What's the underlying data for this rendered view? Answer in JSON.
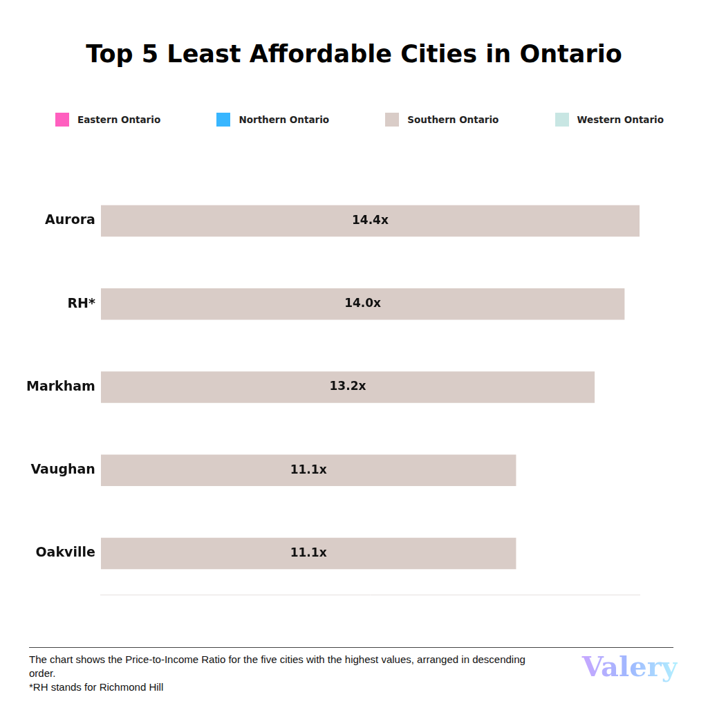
{
  "chart_data": {
    "type": "bar",
    "title": "Top 5 Least Affordable Cities in Ontario",
    "orientation": "horizontal",
    "stacked": true,
    "categories": [
      "Aurora",
      "RH*",
      "Markham",
      "Vaughan",
      "Oakville"
    ],
    "series": [
      {
        "name": "Eastern Ontario",
        "color": "#ff5fbf",
        "values": [
          null,
          null,
          null,
          null,
          null
        ]
      },
      {
        "name": "Northern Ontario",
        "color": "#38b6ff",
        "values": [
          null,
          null,
          null,
          null,
          null
        ]
      },
      {
        "name": "Southern Ontario",
        "color": "#d9ccc7",
        "values": [
          14.4,
          14.0,
          13.2,
          11.1,
          11.1
        ],
        "value_labels": [
          "14.4x",
          "14.0x",
          "13.2x",
          "11.1x",
          "11.1x"
        ]
      },
      {
        "name": "Western Ontario",
        "color": "#c8e6e3",
        "values": [
          null,
          null,
          null,
          null,
          null
        ]
      }
    ],
    "xlim": [
      0,
      14.4
    ],
    "data_labels": true,
    "tick_labels": "y",
    "grid": false,
    "legend": "top",
    "notes": [
      "The chart shows the Price-to-Income Ratio for the five cities with the highest values, arranged in descending order.",
      "*RH stands for Richmond Hill"
    ],
    "brand": "Valery"
  }
}
